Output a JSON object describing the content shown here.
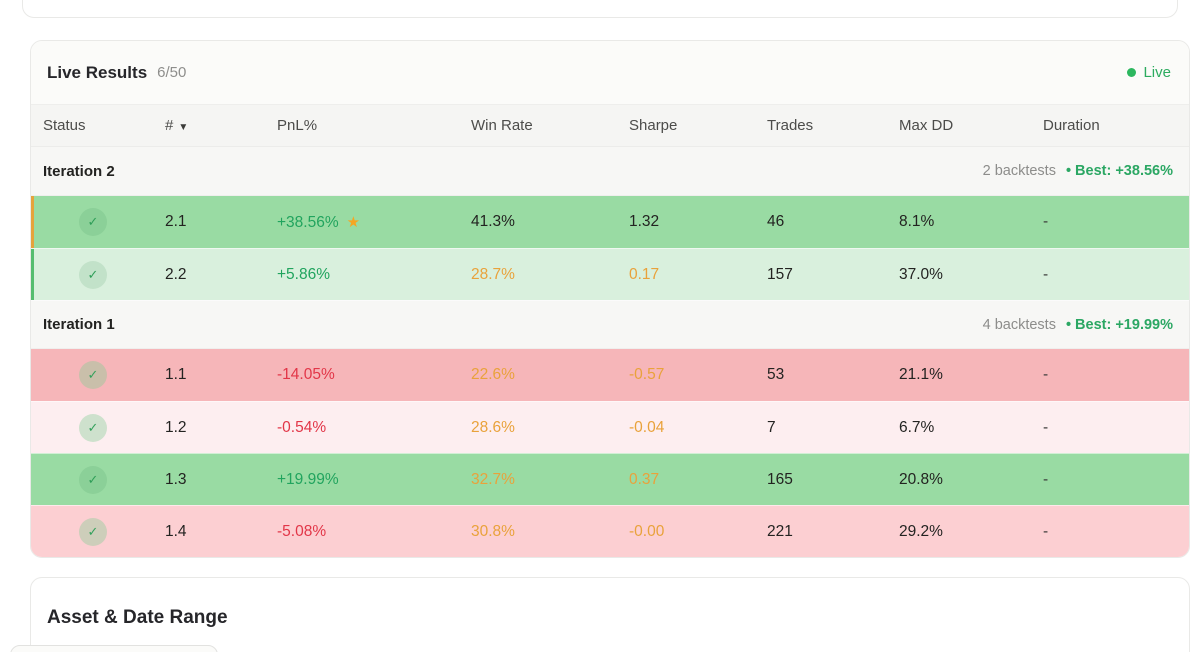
{
  "header": {
    "title": "Live Results",
    "count": "6/50",
    "live_label": "Live"
  },
  "columns": [
    "Status",
    "#",
    "PnL%",
    "Win Rate",
    "Sharpe",
    "Trades",
    "Max DD",
    "Duration"
  ],
  "sort_arrow": "▼",
  "icons": {
    "check": "✓",
    "star": "★"
  },
  "groups": [
    {
      "label": "Iteration 2",
      "count": "2 backtests",
      "best": "• Best: +38.56%",
      "rows": [
        {
          "id": "2.1",
          "pnl": "+38.56%",
          "win_rate": "41.3%",
          "sharpe": "1.32",
          "trades": "46",
          "max_dd": "8.1%",
          "duration": "-"
        },
        {
          "id": "2.2",
          "pnl": "+5.86%",
          "win_rate": "28.7%",
          "sharpe": "0.17",
          "trades": "157",
          "max_dd": "37.0%",
          "duration": "-"
        }
      ]
    },
    {
      "label": "Iteration 1",
      "count": "4 backtests",
      "best": "• Best: +19.99%",
      "rows": [
        {
          "id": "1.1",
          "pnl": "-14.05%",
          "win_rate": "22.6%",
          "sharpe": "-0.57",
          "trades": "53",
          "max_dd": "21.1%",
          "duration": "-"
        },
        {
          "id": "1.2",
          "pnl": "-0.54%",
          "win_rate": "28.6%",
          "sharpe": "-0.04",
          "trades": "7",
          "max_dd": "6.7%",
          "duration": "-"
        },
        {
          "id": "1.3",
          "pnl": "+19.99%",
          "win_rate": "32.7%",
          "sharpe": "0.37",
          "trades": "165",
          "max_dd": "20.8%",
          "duration": "-"
        },
        {
          "id": "1.4",
          "pnl": "-5.08%",
          "win_rate": "30.8%",
          "sharpe": "-0.00",
          "trades": "221",
          "max_dd": "29.2%",
          "duration": "-"
        }
      ]
    }
  ],
  "bottom_panel": {
    "title": "Asset & Date Range"
  },
  "colors": {
    "live_green": "#2cb75f",
    "pnl_green": "#21a45e",
    "pnl_red": "#e23648",
    "warn_orange": "#e9a23b",
    "star_orange": "#f5a623",
    "row_strong_green": "#99dba3",
    "row_light_green": "#d9f0dd",
    "row_strong_red": "#f6b6b9",
    "row_light_red": "#fdeef0",
    "row_med_red": "#fccfd2"
  }
}
